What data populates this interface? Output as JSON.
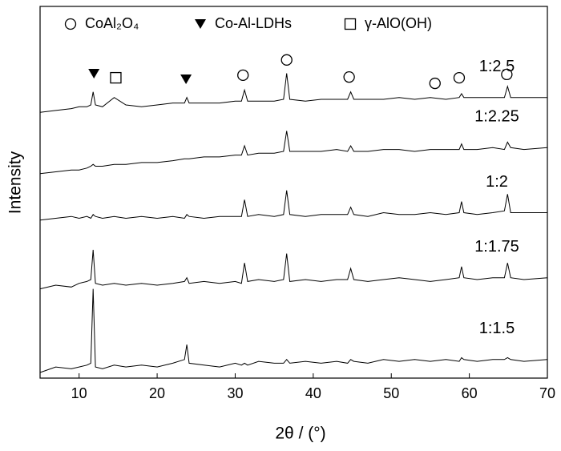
{
  "chart_data": {
    "type": "line",
    "xlabel": "2θ / (°)",
    "ylabel": "Intensity",
    "xlim": [
      5,
      70
    ],
    "xticks": [
      10,
      20,
      30,
      40,
      50,
      60,
      70
    ],
    "ylim": [
      0,
      100
    ],
    "legend": [
      {
        "symbol": "circle",
        "label": "CoAl₂O₄"
      },
      {
        "symbol": "triangle",
        "label": "Co-Al-LDHs"
      },
      {
        "symbol": "square",
        "label": "γ-AlO(OH)"
      }
    ],
    "peak_markers": [
      {
        "symbol": "triangle",
        "x": 11.9,
        "y": 81.9
      },
      {
        "symbol": "square",
        "x": 14.7,
        "y": 80.8
      },
      {
        "symbol": "triangle",
        "x": 23.7,
        "y": 80.4
      },
      {
        "symbol": "circle",
        "x": 31,
        "y": 81.5
      },
      {
        "symbol": "circle",
        "x": 36.6,
        "y": 85.6
      },
      {
        "symbol": "circle",
        "x": 44.6,
        "y": 81
      },
      {
        "symbol": "circle",
        "x": 55.6,
        "y": 79.3
      },
      {
        "symbol": "circle",
        "x": 58.7,
        "y": 80.8
      },
      {
        "symbol": "circle",
        "x": 64.8,
        "y": 81.7
      }
    ],
    "x": [
      5,
      7,
      9,
      10,
      11,
      11.5,
      11.8,
      12.1,
      13,
      14.5,
      16,
      18,
      20,
      22,
      23.5,
      23.8,
      24.1,
      26,
      28,
      30,
      30.8,
      31.2,
      31.6,
      33,
      35,
      36.2,
      36.6,
      37,
      39,
      41,
      43,
      44.4,
      44.8,
      45.2,
      47,
      49,
      51,
      53,
      55,
      57,
      58.7,
      59,
      59.3,
      61,
      63,
      64.5,
      64.9,
      65.3,
      67,
      70
    ],
    "series": [
      {
        "name": "1:2.5",
        "color": "#000000",
        "values": [
          71.5,
          72,
          72.5,
          73,
          73,
          73.5,
          77,
          73.5,
          73,
          75.5,
          73.5,
          73,
          73.5,
          74,
          74,
          75.5,
          74,
          74,
          74,
          74.5,
          74.5,
          77.5,
          74.5,
          74.5,
          74.5,
          75,
          82,
          75,
          74.5,
          75,
          75,
          75,
          77,
          75,
          75,
          75,
          75.5,
          75,
          75.5,
          75,
          75.5,
          76.5,
          75.5,
          75.5,
          75.5,
          75.5,
          78.5,
          75.5,
          75.5,
          75.5
        ]
      },
      {
        "name": "1:2.25",
        "color": "#000000",
        "values": [
          55,
          55.5,
          56,
          56,
          56.5,
          57,
          57.5,
          57,
          57,
          57.5,
          57.5,
          58,
          58,
          58.5,
          59,
          59,
          59,
          59.5,
          59.5,
          60,
          60,
          62.5,
          60,
          60.5,
          60.5,
          61,
          66.5,
          61,
          61,
          61,
          61.5,
          61,
          62.5,
          61,
          61,
          61.5,
          61.5,
          61,
          61.5,
          61.5,
          61.5,
          63,
          61.5,
          61.5,
          62,
          61.5,
          63.5,
          62,
          61.5,
          62
        ]
      },
      {
        "name": "1:2",
        "color": "#000000",
        "values": [
          42.5,
          43,
          43.5,
          43,
          43.5,
          43,
          44,
          43.5,
          43,
          43.5,
          43,
          43.5,
          43,
          43.5,
          43,
          44,
          43.5,
          43,
          43.5,
          43.5,
          43.5,
          48,
          43.5,
          44,
          43.5,
          44,
          50.5,
          44,
          43.5,
          44,
          44,
          44,
          46,
          44,
          43.5,
          44.5,
          44,
          44,
          44.5,
          44,
          44.5,
          47.5,
          44.5,
          44,
          44.5,
          45,
          49.5,
          44.5,
          44.5,
          44.5
        ]
      },
      {
        "name": "1:1.75",
        "color": "#000000",
        "values": [
          24,
          25,
          24.5,
          25.5,
          26,
          26.5,
          34.5,
          25.5,
          25,
          25.5,
          25,
          25.5,
          25,
          25.5,
          26,
          27,
          25.5,
          26,
          25.5,
          26,
          25.5,
          31,
          26,
          26.5,
          26,
          26.5,
          33.5,
          26,
          26.5,
          26,
          26.5,
          26.5,
          29.5,
          26.5,
          26,
          26.5,
          27,
          26.5,
          26,
          26.5,
          27,
          30,
          27,
          26.5,
          27,
          27,
          31,
          27,
          26.5,
          27
        ]
      },
      {
        "name": "1:1.5",
        "color": "#000000",
        "values": [
          1.5,
          3,
          2.5,
          3,
          3.5,
          4,
          24,
          3,
          2.5,
          3.5,
          3,
          3.5,
          3,
          4,
          5,
          9,
          4,
          3.5,
          3,
          4,
          3.5,
          4,
          3.5,
          4.5,
          4,
          4,
          5,
          4,
          4.5,
          4,
          4.5,
          4,
          5,
          4.5,
          4,
          5,
          4.5,
          5,
          4.5,
          5,
          4.5,
          5.5,
          5,
          4.5,
          5,
          5,
          5.5,
          5,
          4.5,
          5
        ]
      }
    ]
  }
}
